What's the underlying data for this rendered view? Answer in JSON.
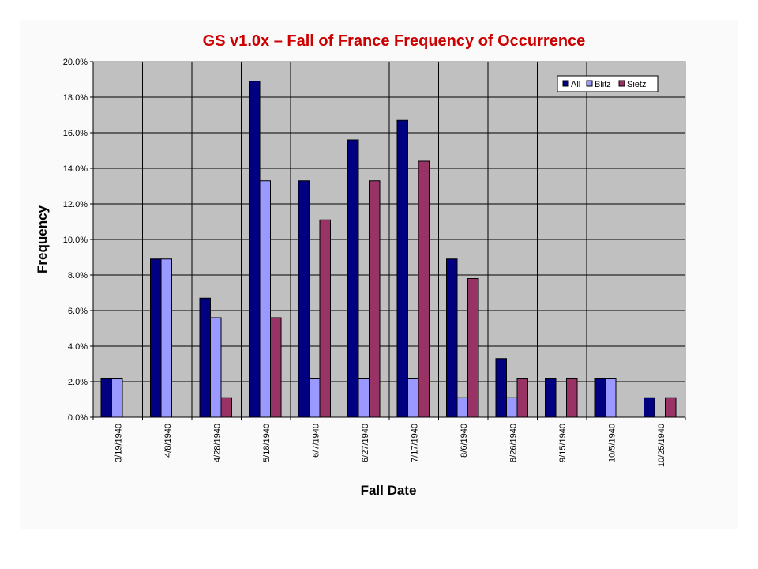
{
  "chart_data": {
    "type": "bar",
    "title": "GS v1.0x – Fall of France Frequency of Occurrence",
    "xlabel": "Fall Date",
    "ylabel": "Frequency",
    "categories": [
      "3/19/1940",
      "4/8/1940",
      "4/28/1940",
      "5/18/1940",
      "6/7/1940",
      "6/27/1940",
      "7/17/1940",
      "8/6/1940",
      "8/26/1940",
      "9/15/1940",
      "10/5/1940",
      "10/25/1940"
    ],
    "series": [
      {
        "name": "All",
        "color": "#000080",
        "values": [
          2.2,
          8.9,
          6.7,
          18.9,
          13.3,
          15.6,
          16.7,
          8.9,
          3.3,
          2.2,
          2.2,
          1.1
        ]
      },
      {
        "name": "Blitz",
        "color": "#9999ff",
        "values": [
          2.2,
          8.9,
          5.6,
          13.3,
          2.2,
          2.2,
          2.2,
          1.1,
          1.1,
          0,
          2.2,
          0
        ]
      },
      {
        "name": "Sietz",
        "color": "#993366",
        "values": [
          0,
          0,
          1.1,
          5.6,
          11.1,
          13.3,
          14.4,
          7.8,
          2.2,
          2.2,
          0,
          1.1
        ]
      }
    ],
    "y_ticks": [
      "0.0%",
      "2.0%",
      "4.0%",
      "6.0%",
      "8.0%",
      "10.0%",
      "12.0%",
      "14.0%",
      "16.0%",
      "18.0%",
      "20.0%"
    ],
    "ylim": [
      0,
      20
    ],
    "grid": true,
    "legend_position": "top-right",
    "plot_background": "#c0c0c0",
    "title_color": "#cc0000"
  }
}
